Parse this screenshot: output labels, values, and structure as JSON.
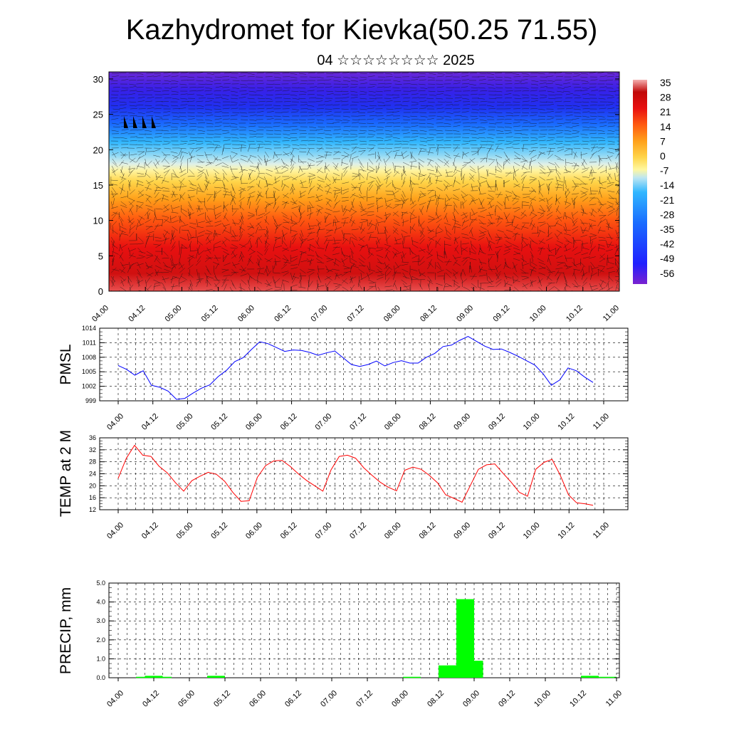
{
  "title": "Kazhydromet for Kievka(50.25 71.55)",
  "subtitle": "04 ☆☆☆☆☆☆☆☆ 2025",
  "time_ticks": [
    "04.00",
    "04.12",
    "05.00",
    "05.12",
    "06.00",
    "06.12",
    "07.00",
    "07.12",
    "08.00",
    "08.12",
    "09.00",
    "09.12",
    "10.00",
    "10.12",
    "11.00"
  ],
  "chart_data": [
    {
      "type": "heatmap",
      "name": "temperature-wind-cross-section",
      "x_ticks": [
        "04.00",
        "04.12",
        "05.00",
        "05.12",
        "06.00",
        "06.12",
        "07.00",
        "07.12",
        "08.00",
        "08.12",
        "09.00",
        "09.12",
        "10.00",
        "10.12",
        "11.00"
      ],
      "y_ticks": [
        0,
        5,
        10,
        15,
        20,
        25,
        30
      ],
      "ylim": [
        0,
        31
      ],
      "colorbar_labels": [
        "35",
        "28",
        "21",
        "14",
        "7",
        "0",
        "-7",
        "-14",
        "-21",
        "-28",
        "-35",
        "-42",
        "-49",
        "-56"
      ],
      "colorbar_range": [
        -60,
        38
      ],
      "colors": [
        "#7a22d0",
        "#2020ff",
        "#1a6cff",
        "#31b7ff",
        "#bde6f2",
        "#fff7a0",
        "#ffd54a",
        "#ffa01a",
        "#ff5a10",
        "#e81010",
        "#c00808",
        "#f5b0b0"
      ]
    },
    {
      "type": "line",
      "name": "pmsl",
      "ylabel": "PMSL",
      "yticks": [
        999,
        1002,
        1005,
        1008,
        1011,
        1014
      ],
      "ylim": [
        999,
        1014
      ],
      "color": "#0000ff",
      "values": [
        1006.3,
        1005.5,
        1004.3,
        1005.2,
        1002.2,
        1001.8,
        1001.0,
        999.3,
        999.5,
        1000.6,
        1001.6,
        1002.3,
        1004.0,
        1005.3,
        1007.1,
        1007.9,
        1009.6,
        1011.2,
        1010.8,
        1010.0,
        1009.2,
        1009.5,
        1009.4,
        1009.0,
        1008.4,
        1008.9,
        1009.3,
        1007.9,
        1006.5,
        1006.1,
        1006.5,
        1007.2,
        1006.2,
        1006.9,
        1007.3,
        1006.8,
        1006.8,
        1008.0,
        1008.8,
        1010.2,
        1010.5,
        1011.5,
        1012.3,
        1011.3,
        1010.3,
        1009.6,
        1009.7,
        1009.0,
        1008.2,
        1007.3,
        1006.4,
        1004.6,
        1002.2,
        1003.3,
        1005.8,
        1005.2,
        1003.9,
        1002.8
      ]
    },
    {
      "type": "line",
      "name": "temp-2m",
      "ylabel": "TEMP at 2 M",
      "yticks": [
        12,
        16,
        20,
        24,
        28,
        32,
        36
      ],
      "ylim": [
        12,
        36
      ],
      "color": "#ff0000",
      "values": [
        22.5,
        29.2,
        33.5,
        30.2,
        29.8,
        26.5,
        24.3,
        21.0,
        18.2,
        21.7,
        23.2,
        24.5,
        23.8,
        21.5,
        17.8,
        14.8,
        15.0,
        22.8,
        26.7,
        28.3,
        28.5,
        26.5,
        24.0,
        21.8,
        20.0,
        18.2,
        25.3,
        29.8,
        30.2,
        29.2,
        26.0,
        23.5,
        21.2,
        19.5,
        18.3,
        25.2,
        26.2,
        25.5,
        23.5,
        21.0,
        17.0,
        15.8,
        14.5,
        20.0,
        25.5,
        27.0,
        27.3,
        24.2,
        21.2,
        17.8,
        16.5,
        25.5,
        27.8,
        28.8,
        23.5,
        17.0,
        14.3,
        14.0,
        13.5
      ]
    },
    {
      "type": "bar",
      "name": "precip",
      "ylabel": "PRECIP, mm",
      "yticks": [
        "0.0",
        "1.0",
        "2.0",
        "3.0",
        "4.0",
        "5.0"
      ],
      "ylim": [
        0,
        5
      ],
      "color": "#00ff00",
      "values": [
        0,
        0,
        0.05,
        0.1,
        0.05,
        0,
        0,
        0,
        0,
        0,
        0.1,
        0,
        0,
        0,
        0,
        0,
        0,
        0,
        0,
        0,
        0,
        0,
        0,
        0,
        0,
        0,
        0,
        0,
        0,
        0,
        0,
        0,
        0.05,
        0,
        0,
        0,
        0.65,
        0.65,
        4.15,
        0.9,
        0,
        0,
        0,
        0,
        0,
        0,
        0,
        0,
        0,
        0,
        0,
        0,
        0.1,
        0,
        0.05,
        0,
        0
      ]
    }
  ]
}
